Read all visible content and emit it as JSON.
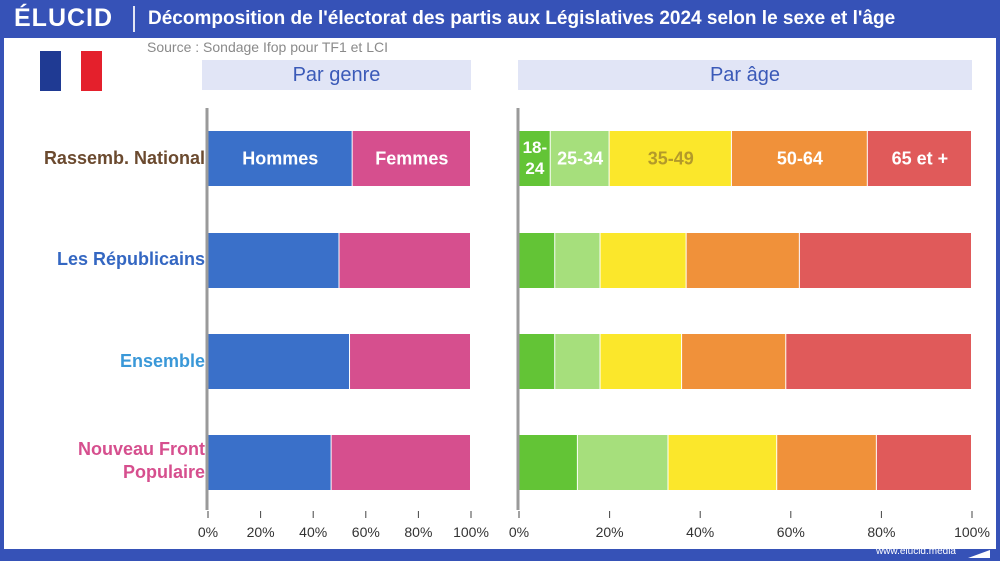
{
  "header": {
    "logo": "ÉLUCID",
    "title": "Décomposition de l'électorat des partis aux Législatives 2024 selon le sexe et l'âge",
    "source": "Source : Sondage Ifop pour TF1 et LCI"
  },
  "flag": {
    "colors": [
      "#1f3a93",
      "#ffffff",
      "#e4202c"
    ]
  },
  "footer": {
    "url": "www.elucid.media"
  },
  "colors": {
    "brand": "#3652b7",
    "panel_header_bg": "#e1e5f6",
    "hommes": "#3a70c9",
    "femmes": "#d64f8e",
    "age_18_24": "#63c436",
    "age_25_34": "#a6df7c",
    "age_35_49": "#fbe72b",
    "age_50_64": "#f0913a",
    "age_65_plus": "#e05a5a"
  },
  "rows": [
    {
      "label": "Rassemb. National",
      "color": "#6b4a2f"
    },
    {
      "label": "Les Républicains",
      "color": "#3467c2"
    },
    {
      "label": "Ensemble",
      "color": "#3a98d8"
    },
    {
      "label": "Nouveau Front Populaire",
      "label_lines": [
        "Nouveau Front",
        "Populaire"
      ],
      "color": "#d64f8e"
    }
  ],
  "chart_data": [
    {
      "type": "bar",
      "orientation": "horizontal",
      "stacked": "100%",
      "title": "Par genre",
      "categories": [
        "Rassemb. National",
        "Les Républicains",
        "Ensemble",
        "Nouveau Front Populaire"
      ],
      "series": [
        {
          "name": "Hommes",
          "color": "#3a70c9",
          "values": [
            55,
            50,
            54,
            47
          ]
        },
        {
          "name": "Femmes",
          "color": "#d64f8e",
          "values": [
            45,
            50,
            46,
            53
          ]
        }
      ],
      "xlim": [
        0,
        100
      ],
      "xticks": [
        "0%",
        "20%",
        "40%",
        "60%",
        "80%",
        "100%"
      ],
      "segment_labels_row": 0
    },
    {
      "type": "bar",
      "orientation": "horizontal",
      "stacked": "100%",
      "title": "Par âge",
      "categories": [
        "Rassemb. National",
        "Les Républicains",
        "Ensemble",
        "Nouveau Front Populaire"
      ],
      "series": [
        {
          "name": "18-24",
          "label_lines": [
            "18-",
            "24"
          ],
          "color": "#63c436",
          "values": [
            7,
            8,
            8,
            13
          ]
        },
        {
          "name": "25-34",
          "color": "#a6df7c",
          "values": [
            13,
            10,
            10,
            20
          ]
        },
        {
          "name": "35-49",
          "color": "#fbe72b",
          "values": [
            27,
            19,
            18,
            24
          ]
        },
        {
          "name": "50-64",
          "color": "#f0913a",
          "values": [
            30,
            25,
            23,
            22
          ]
        },
        {
          "name": "65 et +",
          "color": "#e05a5a",
          "values": [
            23,
            38,
            41,
            21
          ]
        }
      ],
      "xlim": [
        0,
        100
      ],
      "xticks": [
        "0%",
        "20%",
        "40%",
        "60%",
        "80%",
        "100%"
      ],
      "segment_labels_row": 0
    }
  ]
}
